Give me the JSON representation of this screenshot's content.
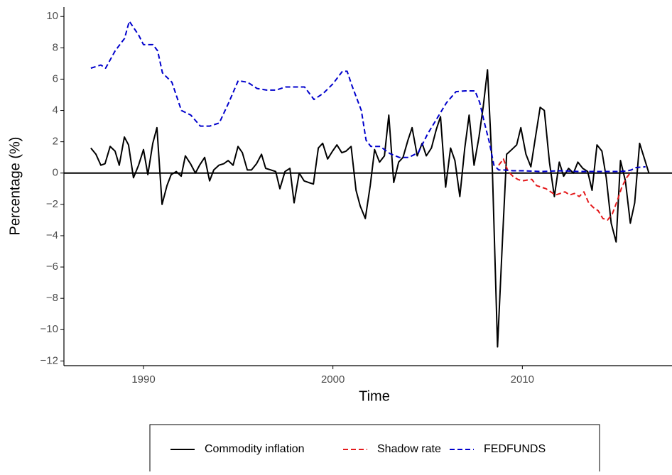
{
  "chart_data": {
    "type": "line",
    "xlabel": "Time",
    "ylabel": "Percentage (%)",
    "xlim": [
      1985.8,
      2017.9
    ],
    "xticks": [
      1990,
      2000,
      2010
    ],
    "ylim": [
      -12.3,
      10.6
    ],
    "yticks": [
      {
        "value": -12,
        "label": "−12"
      },
      {
        "value": -10,
        "label": "−10"
      },
      {
        "value": -8,
        "label": "−8"
      },
      {
        "value": -6,
        "label": "−6"
      },
      {
        "value": -4,
        "label": "−4"
      },
      {
        "value": -2,
        "label": "−2"
      },
      0,
      2,
      4,
      6,
      8,
      10
    ],
    "hline": 0,
    "legend": "bottom",
    "series": [
      {
        "name": "Commodity inflation",
        "color": "#000000",
        "dash": false,
        "x": [
          1987.22,
          1987.49,
          1987.75,
          1987.97,
          1988.24,
          1988.5,
          1988.72,
          1988.99,
          1989.21,
          1989.47,
          1989.74,
          1990.0,
          1990.23,
          1990.49,
          1990.71,
          1990.98,
          1991.24,
          1991.46,
          1991.73,
          1991.99,
          1992.21,
          1992.48,
          1992.74,
          1992.96,
          1993.23,
          1993.49,
          1993.71,
          1993.98,
          1994.24,
          1994.47,
          1994.73,
          1994.99,
          1995.22,
          1995.48,
          1995.7,
          1995.97,
          1996.23,
          1996.45,
          1996.72,
          1996.98,
          1997.2,
          1997.47,
          1997.73,
          1997.95,
          1998.22,
          1998.48,
          1998.71,
          1998.97,
          1999.23,
          1999.46,
          1999.72,
          1999.98,
          2000.21,
          2000.47,
          2000.69,
          2000.96,
          2001.22,
          2001.44,
          2001.71,
          2001.97,
          2002.2,
          2002.46,
          2002.72,
          2002.95,
          2003.21,
          2003.47,
          2003.7,
          2003.96,
          2004.18,
          2004.45,
          2004.71,
          2004.93,
          2005.2,
          2005.46,
          2005.68,
          2005.95,
          2006.21,
          2006.44,
          2006.7,
          2006.96,
          2007.19,
          2007.45,
          2007.71,
          2007.94,
          2008.16,
          2008.42,
          2008.69,
          2008.95,
          2009.17,
          2009.44,
          2009.7,
          2009.92,
          2010.19,
          2010.45,
          2010.68,
          2010.94,
          2011.16,
          2011.43,
          2011.69,
          2011.95,
          2012.18,
          2012.44,
          2012.7,
          2012.93,
          2013.19,
          2013.45,
          2013.68,
          2013.94,
          2014.2,
          2014.43,
          2014.69,
          2014.95,
          2015.18,
          2015.44,
          2015.7,
          2015.93,
          2016.19,
          2016.45,
          2016.68
        ],
        "values": [
          1.6,
          1.2,
          0.5,
          0.6,
          1.7,
          1.4,
          0.5,
          2.3,
          1.8,
          -0.3,
          0.5,
          1.5,
          -0.1,
          1.9,
          2.9,
          -2.0,
          -0.8,
          -0.1,
          0.1,
          -0.2,
          1.1,
          0.6,
          0.0,
          0.5,
          1.0,
          -0.5,
          0.2,
          0.5,
          0.6,
          0.8,
          0.5,
          1.7,
          1.3,
          0.2,
          0.2,
          0.6,
          1.2,
          0.3,
          0.2,
          0.1,
          -1.0,
          0.1,
          0.3,
          -1.9,
          0.0,
          -0.5,
          -0.6,
          -0.7,
          1.6,
          1.9,
          0.9,
          1.4,
          1.8,
          1.3,
          1.4,
          1.7,
          -1.1,
          -2.1,
          -2.9,
          -0.8,
          1.5,
          0.7,
          1.1,
          3.7,
          -0.6,
          0.7,
          1.0,
          2.1,
          2.9,
          1.1,
          1.9,
          1.1,
          1.6,
          2.8,
          3.6,
          -0.9,
          1.6,
          0.8,
          -1.5,
          1.6,
          3.7,
          0.5,
          2.3,
          4.3,
          6.6,
          0.1,
          -11.1,
          -4.3,
          1.2,
          1.5,
          1.8,
          2.9,
          1.2,
          0.4,
          2.2,
          4.2,
          4.0,
          0.7,
          -1.5,
          0.7,
          -0.2,
          0.3,
          0.0,
          0.7,
          0.3,
          0.1,
          -1.1,
          1.8,
          1.4,
          -0.3,
          -3.2,
          -4.4,
          0.8,
          -0.5,
          -3.2,
          -1.9,
          1.9,
          0.9,
          0.0
        ]
      },
      {
        "name": "Shadow rate",
        "color": "#e41a1c",
        "dash": true,
        "x": [
          2008.75,
          2009.0,
          2009.25,
          2009.5,
          2009.75,
          2010.0,
          2010.5,
          2010.75,
          2011.0,
          2011.25,
          2011.75,
          2012.0,
          2012.25,
          2012.5,
          2012.75,
          2013.0,
          2013.25,
          2013.5,
          2013.75,
          2014.0,
          2014.25,
          2014.5,
          2014.75,
          2015.0,
          2015.25,
          2015.5,
          2015.75
        ],
        "values": [
          0.5,
          0.9,
          0.1,
          -0.2,
          -0.4,
          -0.5,
          -0.4,
          -0.8,
          -0.9,
          -1.0,
          -1.4,
          -1.3,
          -1.2,
          -1.4,
          -1.3,
          -1.5,
          -1.2,
          -1.9,
          -2.2,
          -2.4,
          -2.9,
          -3.0,
          -2.6,
          -1.8,
          -0.9,
          -0.3,
          0.1
        ]
      },
      {
        "name": "FEDFUNDS",
        "color": "#0000cc",
        "dash": true,
        "x": [
          1987.22,
          1987.75,
          1988.0,
          1988.5,
          1989.0,
          1989.25,
          1989.75,
          1990.0,
          1990.5,
          1990.75,
          1991.0,
          1991.5,
          1992.0,
          1992.5,
          1993.0,
          1993.5,
          1994.0,
          1994.5,
          1995.0,
          1995.5,
          1996.0,
          1996.5,
          1997.0,
          1997.5,
          1998.0,
          1998.5,
          1999.0,
          1999.5,
          2000.0,
          2000.5,
          2000.75,
          2001.0,
          2001.5,
          2001.75,
          2002.0,
          2002.5,
          2003.0,
          2003.5,
          2004.0,
          2004.5,
          2005.0,
          2005.5,
          2006.0,
          2006.5,
          2007.0,
          2007.5,
          2007.75,
          2008.0,
          2008.25,
          2008.5,
          2008.75,
          2009.0,
          2009.5,
          2010.0,
          2011.0,
          2012.0,
          2013.0,
          2014.0,
          2015.0,
          2015.5,
          2015.75,
          2016.0,
          2016.5
        ],
        "values": [
          6.7,
          6.9,
          6.7,
          7.8,
          8.6,
          9.7,
          8.8,
          8.2,
          8.2,
          7.8,
          6.4,
          5.8,
          4.0,
          3.7,
          3.0,
          3.0,
          3.2,
          4.5,
          5.9,
          5.8,
          5.4,
          5.3,
          5.3,
          5.5,
          5.5,
          5.5,
          4.7,
          5.1,
          5.7,
          6.5,
          6.5,
          5.6,
          4.0,
          2.1,
          1.7,
          1.7,
          1.25,
          1.0,
          1.0,
          1.3,
          2.5,
          3.5,
          4.5,
          5.2,
          5.25,
          5.25,
          4.5,
          3.2,
          2.0,
          0.5,
          0.2,
          0.2,
          0.15,
          0.15,
          0.1,
          0.15,
          0.1,
          0.1,
          0.1,
          0.13,
          0.2,
          0.35,
          0.4
        ]
      }
    ]
  }
}
